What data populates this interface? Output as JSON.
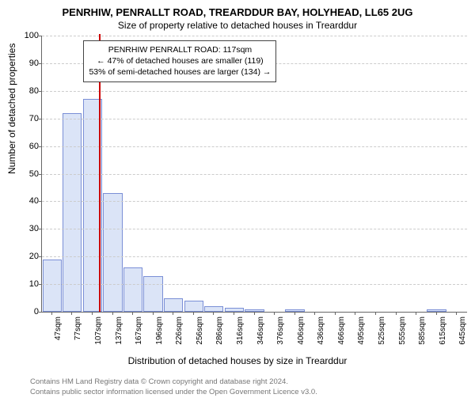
{
  "title_main": "PENRHIW, PENRALLT ROAD, TREARDDUR BAY, HOLYHEAD, LL65 2UG",
  "title_sub": "Size of property relative to detached houses in Trearddur",
  "ylabel": "Number of detached properties",
  "xlabel": "Distribution of detached houses by size in Trearddur",
  "attribution_line1": "Contains HM Land Registry data © Crown copyright and database right 2024.",
  "attribution_line2": "Contains public sector information licensed under the Open Government Licence v3.0.",
  "chart": {
    "type": "histogram",
    "ylim": [
      0,
      100
    ],
    "ytick_step": 10,
    "bar_fill": "#dbe4f7",
    "bar_stroke": "#7a8fd6",
    "grid_color": "#cccccc",
    "marker_color": "#cc0000",
    "marker_x_value": 117,
    "background": "#ffffff",
    "annotation": {
      "line1": "PENRHIW PENRALLT ROAD: 117sqm",
      "line2": "← 47% of detached houses are smaller (119)",
      "line3": "53% of semi-detached houses are larger (134) →"
    },
    "categories": [
      "47sqm",
      "77sqm",
      "107sqm",
      "137sqm",
      "167sqm",
      "196sqm",
      "226sqm",
      "256sqm",
      "286sqm",
      "316sqm",
      "346sqm",
      "376sqm",
      "406sqm",
      "436sqm",
      "466sqm",
      "495sqm",
      "525sqm",
      "555sqm",
      "585sqm",
      "615sqm",
      "645sqm"
    ],
    "values": [
      19,
      72,
      77,
      43,
      16,
      13,
      5,
      4,
      2,
      1.5,
      1,
      0,
      1,
      0,
      0,
      0,
      0,
      0,
      0,
      1,
      0
    ]
  }
}
